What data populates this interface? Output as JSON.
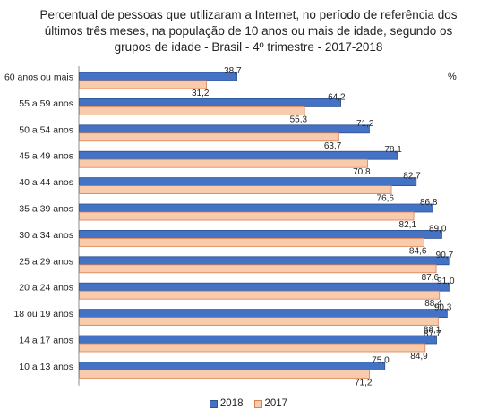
{
  "chart_data": {
    "type": "bar",
    "orientation": "horizontal",
    "title_lines": [
      "Percentual de pessoas que utilizaram a Internet, no período de referência dos",
      "últimos três meses, na população de 10 anos ou mais de idade,  segundo os",
      "grupos de idade - Brasil - 4º trimestre - 2017-2018"
    ],
    "unit_label": "%",
    "categories": [
      "60 anos ou mais",
      "55 a 59 anos",
      "50 a 54 anos",
      "45 a 49 anos",
      "40 a 44 anos",
      "35 a 39 anos",
      "30 a 34 anos",
      "25 a 29 anos",
      "20 a 24 anos",
      "18 ou 19 anos",
      "14 a 17 anos",
      "10 a 13 anos"
    ],
    "series": [
      {
        "name": "2018",
        "color": "#4472c4",
        "stroke": "#2f528f",
        "values": [
          38.7,
          64.2,
          71.2,
          78.1,
          82.7,
          86.8,
          89.0,
          90.7,
          91.0,
          90.3,
          87.7,
          75.0
        ],
        "labels": [
          "38,7",
          "64,2",
          "71,2",
          "78,1",
          "82,7",
          "86,8",
          "89,0",
          "90,7",
          "91,0",
          "90,3",
          "87,7",
          "75,0"
        ]
      },
      {
        "name": "2017",
        "color": "#f8cbad",
        "stroke": "#d9804f",
        "values": [
          31.2,
          55.3,
          63.7,
          70.8,
          76.6,
          82.1,
          84.6,
          87.6,
          88.4,
          88.1,
          84.9,
          71.2
        ],
        "labels": [
          "31,2",
          "55,3",
          "63,7",
          "70,8",
          "76,6",
          "82,1",
          "84,6",
          "87,6",
          "88,4",
          "88,1",
          "84,9",
          "71,2"
        ]
      }
    ],
    "xlim": [
      0,
      100
    ],
    "grid": false,
    "legend_position": "bottom"
  }
}
